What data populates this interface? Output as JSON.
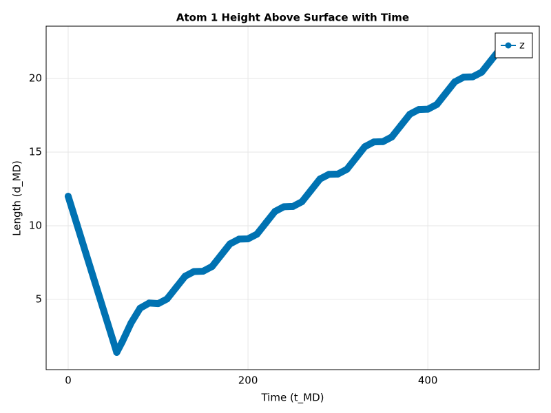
{
  "chart_data": {
    "type": "scatterline",
    "title": "Atom 1 Height Above Surface with Time",
    "x_label": "Time (t_MD)",
    "y_label": "Length (d_MD)",
    "x": [
      0,
      10,
      20,
      30,
      40,
      50,
      54,
      60,
      70,
      80,
      90,
      100,
      110,
      120,
      130,
      140,
      150,
      160,
      170,
      180,
      190,
      200,
      210,
      220,
      230,
      240,
      250,
      260,
      270,
      280,
      290,
      300,
      310,
      320,
      330,
      340,
      350,
      360,
      370,
      380,
      390,
      400,
      410,
      420,
      430,
      440,
      450,
      460,
      470,
      480,
      490
    ],
    "series": [
      {
        "name": "z",
        "color": "#0072b2",
        "values": [
          12,
          10.04,
          8.07,
          6.11,
          4.15,
          2.19,
          1.4,
          2.1,
          3.4,
          4.4,
          4.75,
          4.71,
          5.03,
          5.8,
          6.57,
          6.89,
          6.91,
          7.23,
          8.0,
          8.77,
          9.09,
          9.11,
          9.43,
          10.2,
          10.97,
          11.29,
          11.31,
          11.63,
          12.4,
          13.17,
          13.49,
          13.51,
          13.83,
          14.6,
          15.37,
          15.69,
          15.71,
          16.03,
          16.8,
          17.57,
          17.89,
          17.91,
          18.23,
          19.0,
          19.77,
          20.09,
          20.11,
          20.43,
          21.2,
          21.97,
          22.29
        ]
      }
    ],
    "xlim": [
      -24.5,
      524
    ],
    "ylim": [
      0.23,
      23.55
    ],
    "xticks": [
      0,
      200,
      400
    ],
    "yticks": [
      5,
      10,
      15,
      20
    ],
    "grid": true,
    "legend": "top-right"
  }
}
